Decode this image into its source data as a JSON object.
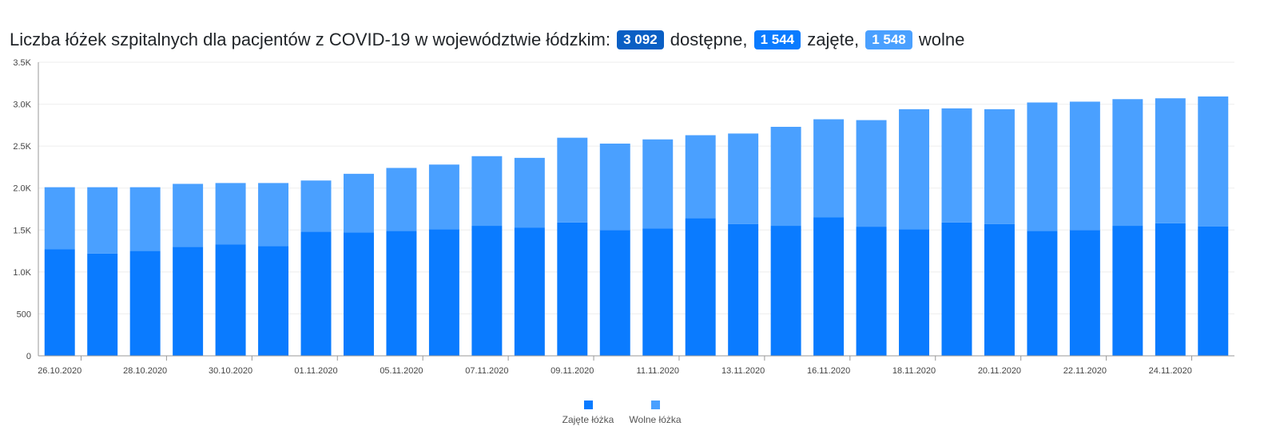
{
  "header": {
    "title_prefix": "Liczba łóżek szpitalnych dla pacjentów z COVID-19 w województwie łódzkim:",
    "available_value": "3 092",
    "available_label": "dostępne,",
    "occupied_value": "1 544",
    "occupied_label": "zajęte,",
    "free_value": "1 548",
    "free_label": "wolne"
  },
  "colors": {
    "badge_available": "#0a5fc4",
    "occupied": "#0a7bff",
    "free": "#4aa0ff",
    "axis": "#999999",
    "grid": "#eeeeee"
  },
  "chart_data": {
    "type": "bar",
    "stacked": true,
    "title": "",
    "xlabel": "",
    "ylabel": "",
    "ylim": [
      0,
      3500
    ],
    "y_ticks": [
      "0",
      "500",
      "1.0K",
      "1.5K",
      "2.0K",
      "2.5K",
      "3.0K",
      "3.5K"
    ],
    "x_tick_labels": [
      "26.10.2020",
      "28.10.2020",
      "30.10.2020",
      "01.11.2020",
      "05.11.2020",
      "07.11.2020",
      "09.11.2020",
      "11.11.2020",
      "13.11.2020",
      "16.11.2020",
      "18.11.2020",
      "20.11.2020",
      "22.11.2020",
      "24.11.2020"
    ],
    "bar_count": 28,
    "series": [
      {
        "name": "Zajęte łóżka",
        "values": [
          1270,
          1220,
          1250,
          1300,
          1330,
          1310,
          1480,
          1470,
          1490,
          1510,
          1550,
          1530,
          1590,
          1500,
          1520,
          1640,
          1570,
          1550,
          1650,
          1540,
          1510,
          1590,
          1570,
          1490,
          1500,
          1550,
          1580,
          1544
        ]
      },
      {
        "name": "Wolne łóżka",
        "values": [
          740,
          790,
          760,
          750,
          730,
          750,
          610,
          700,
          750,
          770,
          830,
          830,
          1010,
          1030,
          1060,
          990,
          1080,
          1180,
          1170,
          1270,
          1430,
          1360,
          1370,
          1530,
          1530,
          1510,
          1490,
          1548
        ]
      }
    ],
    "legend": "bottom-center"
  }
}
